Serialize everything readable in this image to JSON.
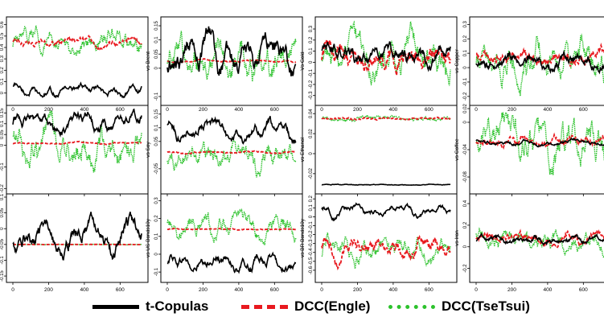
{
  "chart_data": [
    {
      "type": "line",
      "ylabel": "vs SP500",
      "xticks": [],
      "yticks": [
        0.0,
        0.1,
        0.2,
        0.3,
        0.4,
        0.5,
        0.6
      ],
      "ylim": [
        -0.08,
        0.64
      ],
      "series": [
        {
          "style": "t",
          "base": 0.02,
          "amp": 0.06,
          "noise": 0.02
        },
        {
          "style": "engle",
          "base": 0.45,
          "amp": 0.03,
          "noise": 0.02
        },
        {
          "style": "tse",
          "base": 0.45,
          "amp": 0.07,
          "noise": 0.06
        }
      ]
    },
    {
      "type": "line",
      "ylabel": "vs Brent",
      "xticks": [],
      "yticks": [
        -0.1,
        0.0,
        0.05,
        0.1,
        0.15
      ],
      "ylim": [
        -0.12,
        0.17
      ],
      "series": [
        {
          "style": "t",
          "base": 0.05,
          "amp": 0.07,
          "noise": 0.03
        },
        {
          "style": "engle",
          "base": 0.025,
          "amp": 0.004,
          "noise": 0.002
        },
        {
          "style": "tse",
          "base": 0.02,
          "amp": 0.05,
          "noise": 0.04
        }
      ]
    },
    {
      "type": "line",
      "ylabel": "Vs Gold",
      "xticks": [],
      "yticks": [
        -0.3,
        -0.2,
        -0.1,
        0.0,
        0.1,
        0.2,
        0.3
      ],
      "ylim": [
        -0.36,
        0.38
      ],
      "series": [
        {
          "style": "t",
          "base": 0.05,
          "amp": 0.05,
          "noise": 0.05
        },
        {
          "style": "engle",
          "base": 0.05,
          "amp": 0.06,
          "noise": 0.07
        },
        {
          "style": "tse",
          "base": 0.03,
          "amp": 0.08,
          "noise": 0.1
        }
      ]
    },
    {
      "type": "line",
      "ylabel": "vs Copper",
      "xticks": [],
      "yticks": [
        -0.2,
        -0.1,
        0.0,
        0.1,
        0.2,
        0.3
      ],
      "ylim": [
        -0.24,
        0.33
      ],
      "series": [
        {
          "style": "t",
          "base": 0.04,
          "amp": 0.06,
          "noise": 0.03
        },
        {
          "style": "engle",
          "base": 0.07,
          "amp": 0.02,
          "noise": 0.03
        },
        {
          "style": "tse",
          "base": 0.06,
          "amp": 0.06,
          "noise": 0.08
        }
      ]
    },
    {
      "type": "line",
      "ylabel": "vs Corn",
      "xticks": [
        0,
        200,
        400,
        600
      ],
      "yticks": [
        -0.2,
        -0.1,
        0.0,
        0.05,
        0.1,
        0.15
      ],
      "ylim": [
        -0.21,
        0.17
      ],
      "series": [
        {
          "style": "t",
          "base": 0.11,
          "amp": 0.04,
          "noise": 0.02
        },
        {
          "style": "engle",
          "base": 0.01,
          "amp": 0.003,
          "noise": 0.002
        },
        {
          "style": "tse",
          "base": 0.0,
          "amp": 0.04,
          "noise": 0.05
        }
      ]
    },
    {
      "type": "line",
      "ylabel": "vs Soy",
      "xticks": [
        0,
        200,
        400,
        600
      ],
      "yticks": [
        -0.05,
        0.05,
        0.1,
        0.15
      ],
      "ylim": [
        -0.13,
        0.17
      ],
      "series": [
        {
          "style": "t",
          "base": 0.09,
          "amp": 0.04,
          "noise": 0.015
        },
        {
          "style": "engle",
          "base": 0.01,
          "amp": 0.003,
          "noise": 0.002
        },
        {
          "style": "tse",
          "base": 0.0,
          "amp": 0.03,
          "noise": 0.03
        }
      ]
    },
    {
      "type": "line",
      "ylabel": "vs Ethanol",
      "xticks": [
        0,
        200,
        400,
        600
      ],
      "yticks": [
        -0.02,
        0.0,
        0.02,
        0.04
      ],
      "ylim": [
        -0.037,
        0.045
      ],
      "series": [
        {
          "style": "t",
          "base": -0.031,
          "amp": 0.0,
          "noise": 0.0003
        },
        {
          "style": "engle",
          "base": 0.035,
          "amp": 0.0005,
          "noise": 0.0008
        },
        {
          "style": "tse",
          "base": 0.035,
          "amp": 0.001,
          "noise": 0.0015
        }
      ]
    },
    {
      "type": "line",
      "ylabel": "vs Coffee",
      "xticks": [
        0,
        200,
        400,
        600
      ],
      "yticks": [
        -0.08,
        -0.04,
        0.0,
        0.02
      ],
      "ylim": [
        -0.1,
        0.02
      ],
      "series": [
        {
          "style": "t",
          "base": -0.03,
          "amp": 0.003,
          "noise": 0.002
        },
        {
          "style": "engle",
          "base": -0.028,
          "amp": 0.005,
          "noise": 0.004
        },
        {
          "style": "tse",
          "base": -0.025,
          "amp": 0.015,
          "noise": 0.02
        }
      ]
    },
    {
      "type": "line",
      "ylabel": "vs CDS5y",
      "xticks": [
        0,
        200,
        400,
        600
      ],
      "yticks": [
        -0.15,
        -0.1,
        -0.05,
        0.0,
        0.05,
        0.1
      ],
      "ylim": [
        -0.16,
        0.1
      ],
      "series": [
        {
          "style": "t",
          "base": -0.02,
          "amp": 0.06,
          "noise": 0.02
        },
        {
          "style": "engle",
          "base": -0.05,
          "amp": 0.0,
          "noise": 0.0005
        },
        {
          "style": "tse",
          "base": -0.05,
          "amp": 0.0,
          "noise": 0.0005
        }
      ]
    },
    {
      "type": "line",
      "ylabel": "vs US Bonds10y",
      "xticks": [
        0,
        200,
        400,
        600
      ],
      "yticks": [
        -0.1,
        0.0,
        0.1,
        0.2,
        0.3
      ],
      "ylim": [
        -0.14,
        0.32
      ],
      "series": [
        {
          "style": "t",
          "base": -0.05,
          "amp": 0.05,
          "noise": 0.02
        },
        {
          "style": "engle",
          "base": 0.14,
          "amp": 0.002,
          "noise": 0.002
        },
        {
          "style": "tse",
          "base": 0.15,
          "amp": 0.06,
          "noise": 0.035
        }
      ]
    },
    {
      "type": "line",
      "ylabel": "vs BR Bonds10y",
      "xticks": [
        0,
        200,
        400,
        600
      ],
      "yticks": [
        -0.6,
        -0.5,
        -0.4,
        -0.3,
        -0.2,
        -0.1,
        0.0,
        0.1,
        0.2
      ],
      "ylim": [
        -0.7,
        0.22
      ],
      "series": [
        {
          "style": "t",
          "base": 0.07,
          "amp": 0.07,
          "noise": 0.025
        },
        {
          "style": "engle",
          "base": -0.35,
          "amp": 0.1,
          "noise": 0.06
        },
        {
          "style": "tse",
          "base": -0.38,
          "amp": 0.12,
          "noise": 0.07
        }
      ]
    },
    {
      "type": "line",
      "ylabel": "vs Iron",
      "xticks": [
        0,
        200,
        400,
        600
      ],
      "yticks": [
        -0.2,
        0.0,
        0.2,
        0.4
      ],
      "ylim": [
        -0.3,
        0.46
      ],
      "series": [
        {
          "style": "t",
          "base": 0.07,
          "amp": 0.03,
          "noise": 0.02
        },
        {
          "style": "engle",
          "base": 0.08,
          "amp": 0.03,
          "noise": 0.03
        },
        {
          "style": "tse",
          "base": 0.06,
          "amp": 0.04,
          "noise": 0.06
        }
      ]
    }
  ],
  "legend": {
    "t_label": "t-Copulas",
    "engle_label": "DCC(Engle)",
    "tse_label": "DCC(TseTsui)"
  },
  "colors": {
    "t": "#000000",
    "engle": "#e8191f",
    "tse": "#2cc22c"
  },
  "x_domain": [
    0,
    720
  ]
}
